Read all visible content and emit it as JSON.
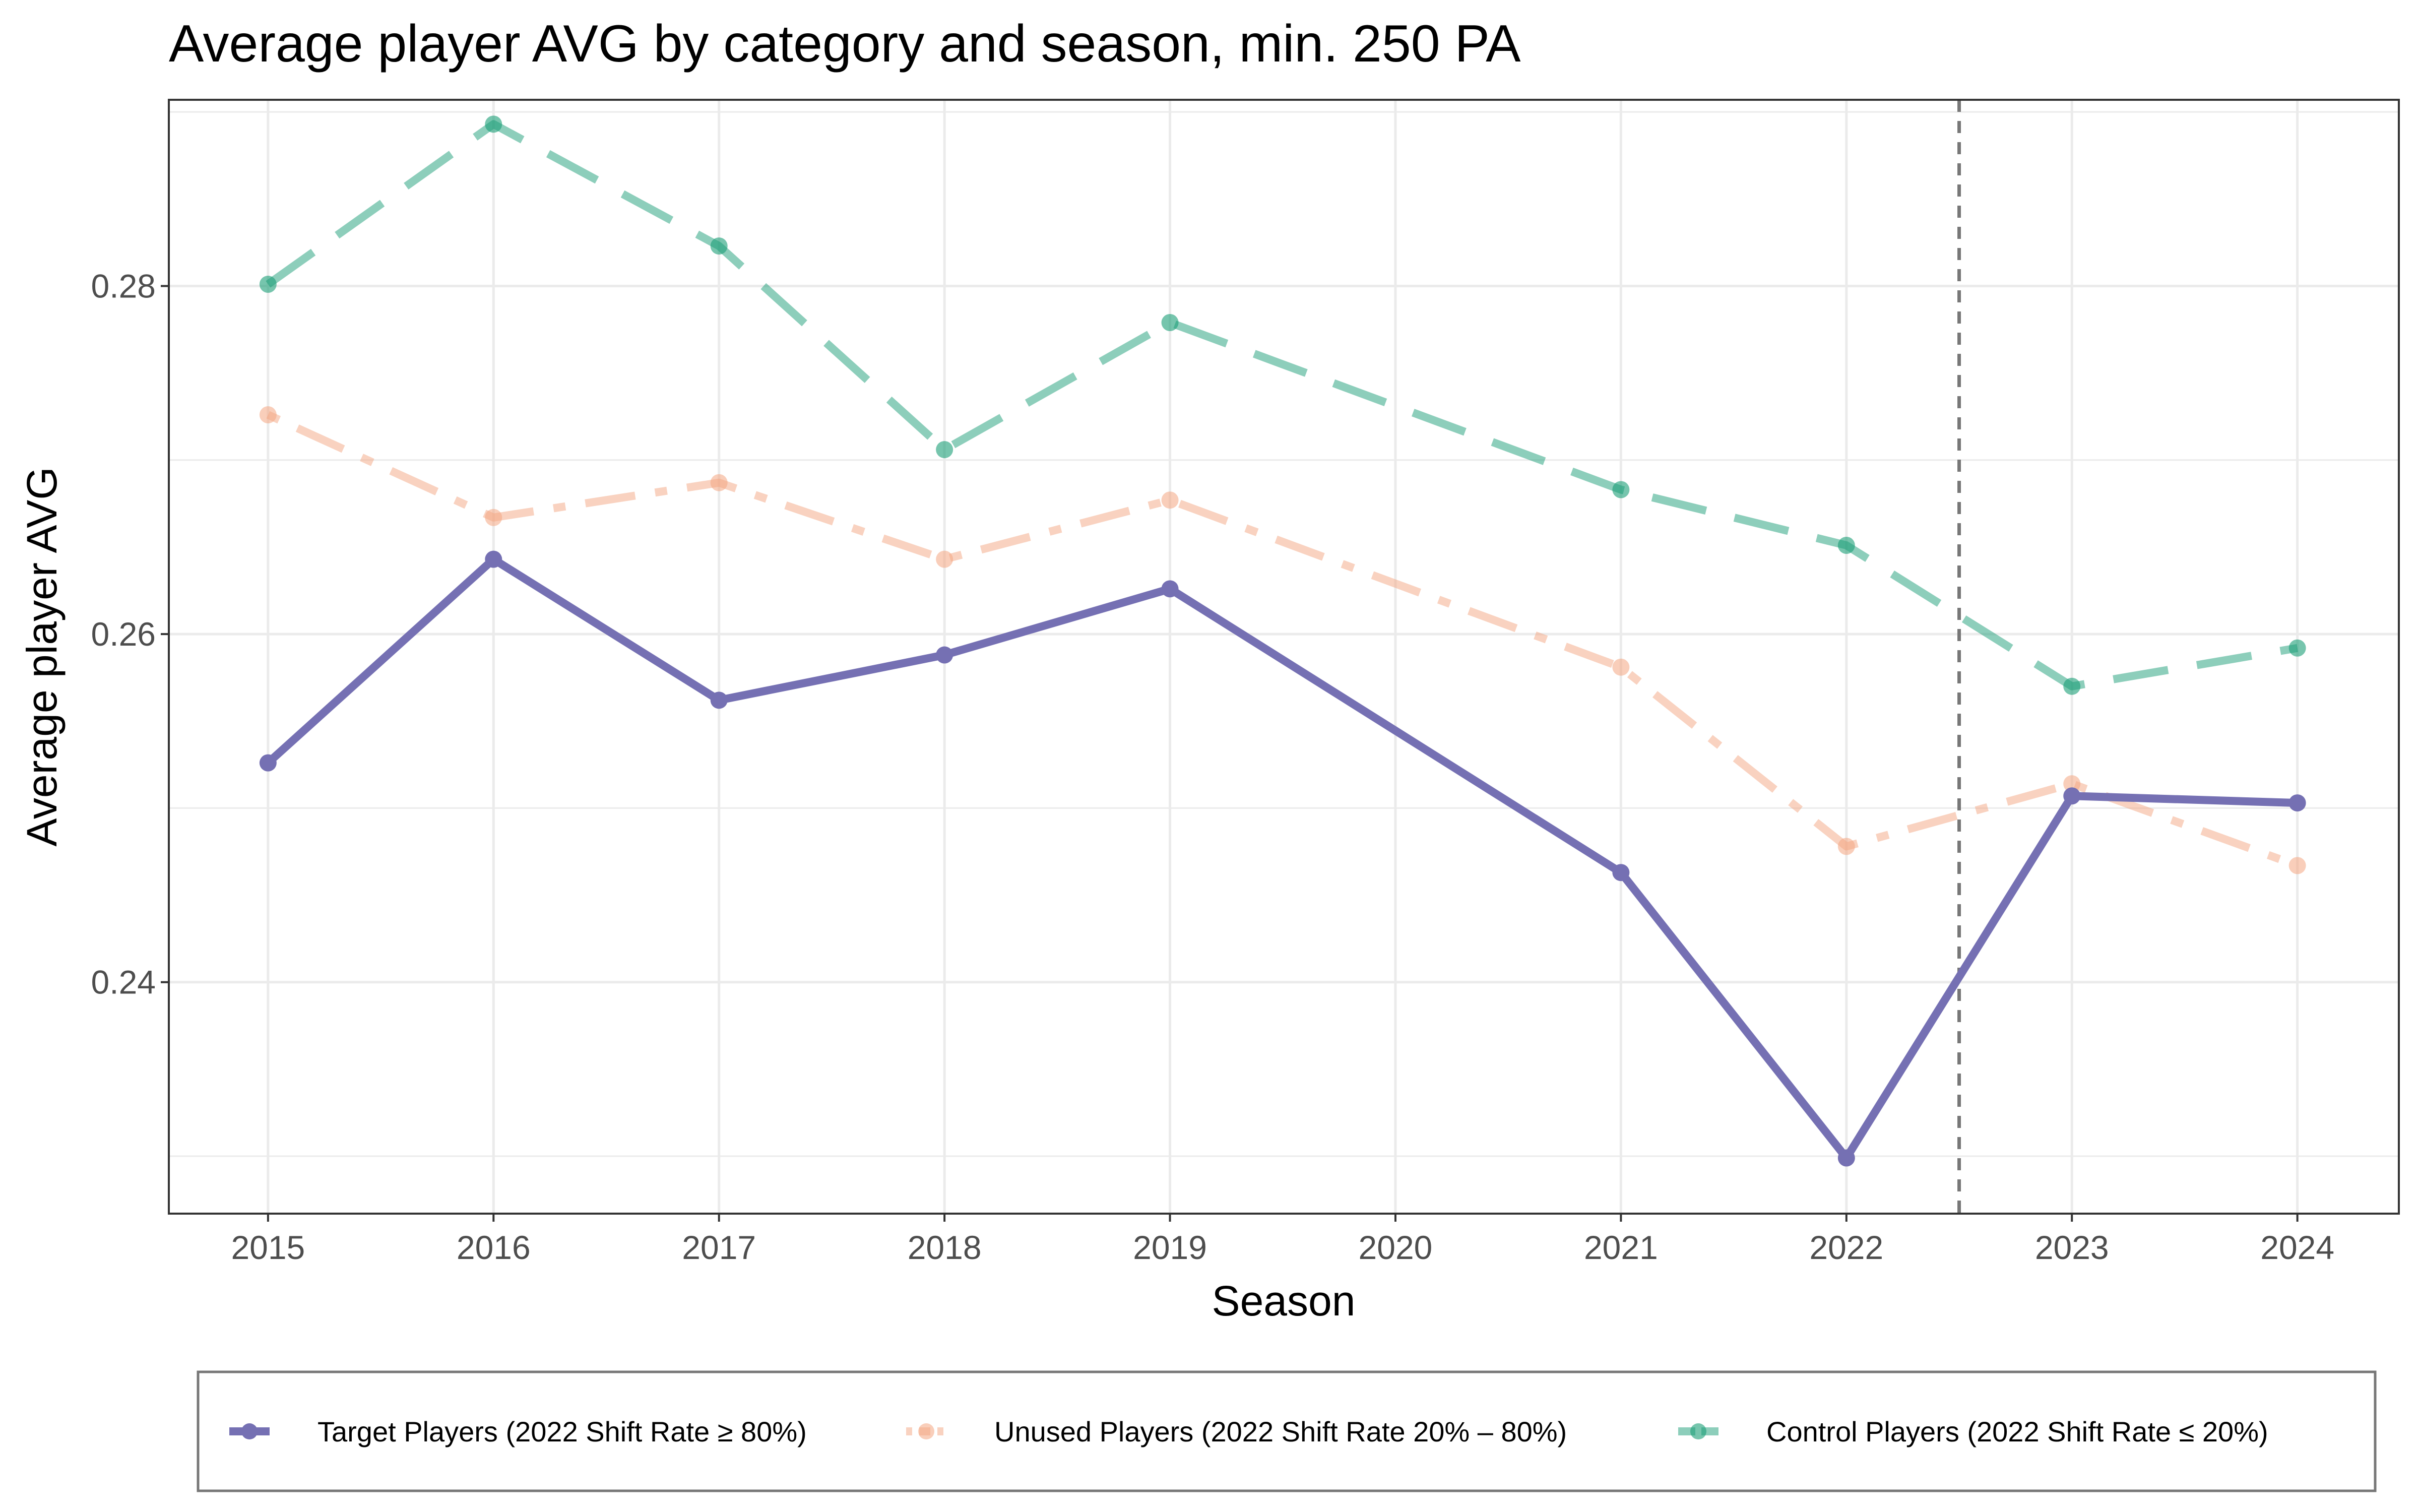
{
  "chart_data": {
    "type": "line",
    "title": "Average player AVG by category and season, min. 250 PA",
    "xlabel": "Season",
    "ylabel": "Average player AVG",
    "xlim": [
      2014.56,
      2024.45
    ],
    "ylim": [
      0.2267,
      0.2907
    ],
    "x_ticks": [
      "2015",
      "2016",
      "2017",
      "2018",
      "2019",
      "2020",
      "2021",
      "2022",
      "2023",
      "2024"
    ],
    "y_ticks": [
      "0.24",
      "0.26",
      "0.28"
    ],
    "y_tick_values": [
      0.24,
      0.26,
      0.28
    ],
    "y_minor_gridlines": [
      0.23,
      0.25,
      0.27,
      0.29
    ],
    "grid": true,
    "legend_position": "bottom",
    "reference_line": {
      "x": 2022.5,
      "style": "dashed",
      "color": "#777777"
    },
    "series": [
      {
        "name": "Target Players (2022 Shift Rate ≥ 80%)",
        "color": "#7570b3",
        "line_style": "solid",
        "x": [
          2015,
          2016,
          2017,
          2018,
          2019,
          2021,
          2022,
          2023,
          2024
        ],
        "values": [
          0.2526,
          0.2643,
          0.2562,
          0.2588,
          0.2626,
          0.2463,
          0.2299,
          0.2507,
          0.2503
        ]
      },
      {
        "name": "Unused Players (2022 Shift Rate 20% – 80%)",
        "color": "#f4a582",
        "line_style": "dotdash",
        "x": [
          2015,
          2016,
          2017,
          2018,
          2019,
          2021,
          2022,
          2023,
          2024
        ],
        "values": [
          0.2726,
          0.2667,
          0.2687,
          0.2643,
          0.2677,
          0.2581,
          0.2478,
          0.2514,
          0.2467
        ]
      },
      {
        "name": "Control Players (2022 Shift Rate ≤ 20%)",
        "color": "#1b9e77",
        "line_style": "longdash",
        "x": [
          2015,
          2016,
          2017,
          2018,
          2019,
          2021,
          2022,
          2023,
          2024
        ],
        "values": [
          0.2801,
          0.2893,
          0.2823,
          0.2706,
          0.2779,
          0.2683,
          0.2651,
          0.257,
          0.2592
        ]
      }
    ]
  }
}
